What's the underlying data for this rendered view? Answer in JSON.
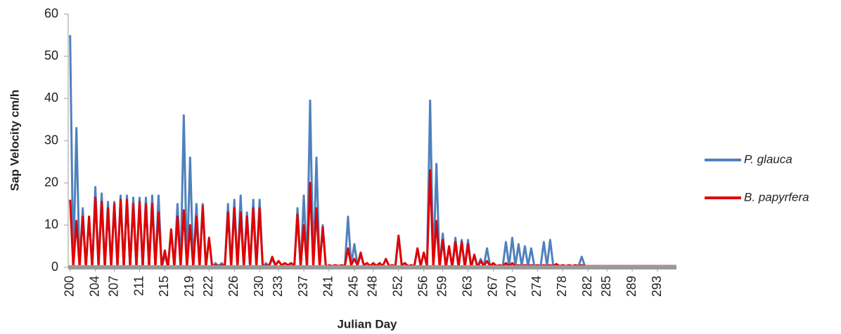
{
  "chart_data": {
    "type": "line",
    "x_label": "Julian Day",
    "y_label": "Sap  Velocity cm/h",
    "xlim": [
      199.7,
      296
    ],
    "ylim": [
      0,
      60
    ],
    "xticks": [
      200,
      204,
      207,
      211,
      215,
      219,
      222,
      226,
      230,
      233,
      237,
      241,
      245,
      248,
      252,
      256,
      259,
      263,
      267,
      270,
      274,
      278,
      282,
      285,
      289,
      293
    ],
    "yticks": [
      0,
      10,
      20,
      30,
      40,
      50,
      60
    ],
    "grid": false,
    "legend": "right",
    "x": [
      200,
      200.5,
      201,
      201.5,
      202,
      202.5,
      203,
      203.5,
      204,
      204.5,
      205,
      205.5,
      206,
      206.5,
      207,
      207.5,
      208,
      208.5,
      209,
      209.5,
      210,
      210.5,
      211,
      211.5,
      212,
      212.5,
      213,
      213.5,
      214,
      214.5,
      215,
      215.5,
      216,
      216.5,
      217,
      217.5,
      218,
      218.5,
      219,
      219.5,
      220,
      220.5,
      221,
      221.5,
      222,
      222.5,
      223,
      223.5,
      224,
      224.5,
      225,
      225.5,
      226,
      226.5,
      227,
      227.5,
      228,
      228.5,
      229,
      229.5,
      230,
      230.5,
      231,
      231.5,
      232,
      232.5,
      233,
      233.5,
      234,
      234.5,
      235,
      235.5,
      236,
      236.5,
      237,
      237.5,
      238,
      238.5,
      239,
      239.5,
      240,
      240.5,
      241,
      241.5,
      242,
      242.5,
      243,
      243.5,
      244,
      244.5,
      245,
      245.5,
      246,
      246.5,
      247,
      247.5,
      248,
      248.5,
      249,
      249.5,
      250,
      250.5,
      251,
      251.5,
      252,
      252.5,
      253,
      253.5,
      254,
      254.5,
      255,
      255.5,
      256,
      256.5,
      257,
      257.5,
      258,
      258.5,
      259,
      259.5,
      260,
      260.5,
      261,
      261.5,
      262,
      262.5,
      263,
      263.5,
      264,
      264.5,
      265,
      265.5,
      266,
      266.5,
      267,
      267.5,
      268,
      268.5,
      269,
      269.5,
      270,
      270.5,
      271,
      271.5,
      272,
      272.5,
      273,
      273.5,
      274,
      274.5,
      275,
      275.5,
      276,
      276.5,
      277,
      277.5,
      278,
      278.5,
      279,
      279.5,
      280,
      280.5,
      281,
      281.5,
      282,
      282.5,
      283,
      284,
      285,
      286,
      287,
      288,
      289,
      290,
      291,
      292,
      293,
      294,
      295,
      296
    ],
    "series": [
      {
        "name": "P. glauca",
        "color": "#4f81bd",
        "values": [
          55,
          0,
          33,
          0,
          14,
          0,
          12,
          0,
          19,
          0,
          17.5,
          0,
          15.5,
          0,
          15.5,
          0,
          17,
          0,
          17,
          0,
          16.5,
          0,
          16.5,
          0,
          16.5,
          0,
          17,
          0,
          17,
          0,
          3,
          0,
          9,
          0,
          15,
          0,
          36,
          0,
          26,
          0,
          15,
          0,
          15,
          0,
          7,
          0,
          1,
          0.3,
          1,
          0.3,
          15,
          0,
          16,
          0,
          17,
          0,
          13,
          0,
          16,
          0,
          16,
          0,
          1,
          0.3,
          2,
          0.5,
          1.5,
          0.5,
          1,
          0.5,
          1,
          0.3,
          14,
          0,
          17,
          0,
          39.5,
          0,
          26,
          0,
          10,
          0,
          0.5,
          0.3,
          0.5,
          0.3,
          0.5,
          0.3,
          12,
          0.5,
          5.5,
          0.5,
          3,
          0.5,
          1,
          0.3,
          1,
          0.3,
          1,
          0.3,
          2,
          0.3,
          0.5,
          0.3,
          7.5,
          0.5,
          1,
          0.3,
          0.5,
          0.3,
          4.5,
          0.3,
          3.5,
          0.3,
          39.5,
          0,
          24.5,
          0,
          8,
          0,
          5,
          0,
          7,
          0,
          6.5,
          0,
          6.5,
          0,
          3,
          0,
          2,
          0.3,
          4.5,
          0.3,
          1,
          0.3,
          0.5,
          0.3,
          6,
          0.3,
          7,
          0.3,
          5.5,
          0.3,
          5,
          0.3,
          4.5,
          0.3,
          0.5,
          0.3,
          6,
          0.3,
          6.5,
          0.3,
          0.5,
          0.3,
          0.5,
          0.3,
          0.5,
          0.3,
          0.5,
          0.3,
          2.5,
          0.3,
          0.3,
          0.3,
          0.3,
          0.3,
          0.3,
          0.3,
          0.3,
          0.3,
          0.3,
          0.3,
          0.3,
          0.3,
          0.3,
          0.3,
          0.3,
          0.3
        ]
      },
      {
        "name": "B. papyrfera",
        "color": "#e00000",
        "values": [
          16,
          0,
          11,
          0,
          12,
          0,
          12,
          0,
          16.5,
          0,
          15.5,
          0,
          14,
          0,
          15,
          0,
          16,
          0,
          16,
          0,
          15,
          0,
          15.5,
          0,
          15,
          0,
          15,
          0,
          13,
          0,
          4,
          0,
          9,
          0,
          12,
          0,
          13.5,
          0,
          10,
          0,
          12,
          0,
          14.5,
          0,
          7,
          0,
          0.5,
          0.3,
          0.5,
          0.3,
          13,
          0,
          14,
          0,
          13,
          0,
          12,
          0,
          14,
          0,
          14,
          0,
          0.5,
          0.3,
          2.5,
          0.5,
          1.5,
          0.5,
          1,
          0.5,
          1,
          0.3,
          12.5,
          0,
          10,
          0,
          20,
          0,
          14,
          0,
          9.5,
          0,
          0.5,
          0.3,
          0.5,
          0.3,
          0.5,
          0.3,
          4.5,
          0.5,
          2,
          0.5,
          3.5,
          0.5,
          1,
          0.3,
          1,
          0.3,
          1,
          0.3,
          2,
          0.3,
          0.5,
          0.3,
          7.5,
          0.5,
          1,
          0.3,
          0.5,
          0.3,
          4.5,
          0.3,
          3.5,
          0.3,
          23,
          0,
          11,
          0,
          6.5,
          0,
          5,
          0,
          6,
          0,
          6,
          0,
          5.5,
          0,
          3,
          0,
          1.5,
          0.3,
          1.5,
          0.3,
          1,
          0.3,
          0.5,
          0.3,
          1,
          0.3,
          1,
          0.3,
          0.5,
          0.3,
          0.5,
          0.3,
          0.5,
          0.3,
          0.5,
          0.3,
          0.5,
          0.3,
          0.5,
          0.3,
          0.8,
          0.3,
          0.5,
          0.3,
          0.5,
          0.3,
          0.5,
          0.3,
          0.5,
          0.3,
          0.3,
          0.3,
          0.3,
          0.3,
          0.3,
          0.3,
          0.3,
          0.3,
          0.3,
          0.3,
          0.3,
          0.3,
          0.3,
          0.3,
          0.3,
          0.3
        ]
      }
    ]
  }
}
